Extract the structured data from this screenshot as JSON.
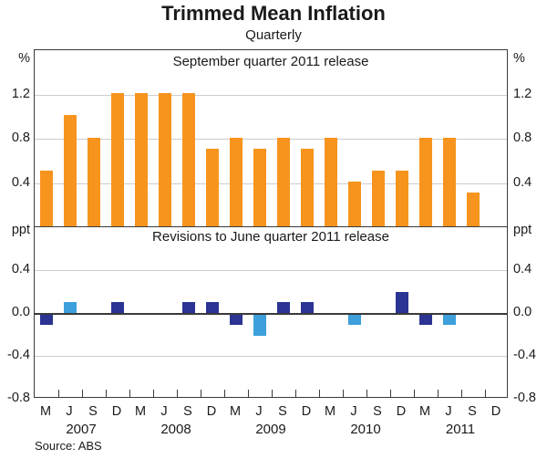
{
  "header": {
    "title": "Trimmed Mean Inflation",
    "subtitle": "Quarterly"
  },
  "source": "Source: ABS",
  "colors": {
    "orange": "#f7941d",
    "dark_blue": "#2b3492",
    "light_blue": "#3d9fdb",
    "gridline": "#cccccc",
    "axis": "#3a3a3a"
  },
  "axes": {
    "top_unit_left": "%",
    "top_unit_right": "%",
    "bottom_unit_left": "ppt",
    "bottom_unit_right": "ppt",
    "top_tick_labels": [
      "1.2",
      "0.8",
      "0.4"
    ],
    "top_tick_values": [
      1.2,
      0.8,
      0.4
    ],
    "bottom_tick_labels": [
      "0.4",
      "0.0",
      "-0.4",
      "-0.8"
    ],
    "bottom_tick_values": [
      0.4,
      0.0,
      -0.4,
      -0.8
    ],
    "x_quarter_labels": [
      "M",
      "J",
      "S",
      "D",
      "M",
      "J",
      "S",
      "D",
      "M",
      "J",
      "S",
      "D",
      "M",
      "J",
      "S",
      "D",
      "M",
      "J",
      "S",
      "D"
    ],
    "x_year_labels": [
      "2007",
      "2008",
      "2009",
      "2010",
      "2011"
    ]
  },
  "chart_data": [
    {
      "type": "bar",
      "title": "September quarter 2011 release",
      "ylabel": "%",
      "ylim": [
        0,
        1.6
      ],
      "gridlines": [
        0.4,
        0.8,
        1.2
      ],
      "legend_position": "none",
      "categories": [
        "M-2007",
        "J-2007",
        "S-2007",
        "D-2007",
        "M-2008",
        "J-2008",
        "S-2008",
        "D-2008",
        "M-2009",
        "J-2009",
        "S-2009",
        "D-2009",
        "M-2010",
        "J-2010",
        "S-2010",
        "D-2010",
        "M-2011",
        "J-2011",
        "S-2011",
        "D-2011"
      ],
      "values": [
        0.5,
        1.0,
        0.8,
        1.2,
        1.2,
        1.2,
        1.2,
        0.7,
        0.8,
        0.7,
        0.8,
        0.7,
        0.8,
        0.4,
        0.5,
        0.5,
        0.8,
        0.8,
        0.3,
        null
      ],
      "bar_color": "#f7941d"
    },
    {
      "type": "bar",
      "title": "Revisions to June quarter 2011 release",
      "ylabel": "ppt",
      "ylim": [
        -0.8,
        0.8
      ],
      "gridlines": [
        -0.4,
        0.0,
        0.4
      ],
      "legend_position": "none",
      "categories": [
        "M-2007",
        "J-2007",
        "S-2007",
        "D-2007",
        "M-2008",
        "J-2008",
        "S-2008",
        "D-2008",
        "M-2009",
        "J-2009",
        "S-2009",
        "D-2009",
        "M-2010",
        "J-2010",
        "S-2010",
        "D-2010",
        "M-2011",
        "J-2011",
        "S-2011",
        "D-2011"
      ],
      "values": [
        -0.1,
        0.1,
        null,
        0.1,
        null,
        null,
        0.1,
        0.1,
        -0.1,
        -0.2,
        0.1,
        0.1,
        null,
        -0.1,
        null,
        0.2,
        -0.1,
        -0.1,
        null,
        null
      ],
      "bar_colors": [
        "#2b3492",
        "#3d9fdb",
        null,
        "#2b3492",
        null,
        null,
        "#2b3492",
        "#2b3492",
        "#2b3492",
        "#3d9fdb",
        "#2b3492",
        "#2b3492",
        null,
        "#3d9fdb",
        null,
        "#2b3492",
        "#2b3492",
        "#3d9fdb",
        null,
        null
      ]
    }
  ]
}
